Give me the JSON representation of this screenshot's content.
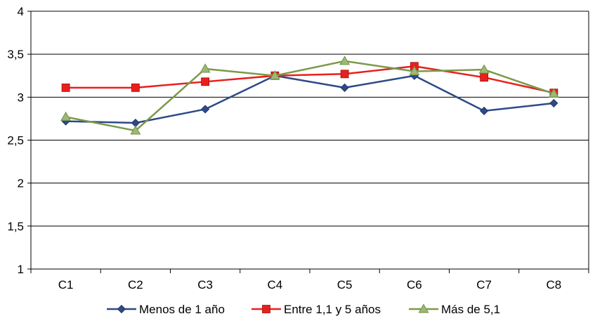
{
  "chart_data": {
    "type": "line",
    "categories": [
      "C1",
      "C2",
      "C3",
      "C4",
      "C5",
      "C6",
      "C7",
      "C8"
    ],
    "y_ticks": [
      "1",
      "1,5",
      "2",
      "2,5",
      "3",
      "3,5",
      "4"
    ],
    "ylim": [
      1,
      4
    ],
    "grid": true,
    "legend_position": "bottom",
    "series": [
      {
        "name": "Menos de 1 año",
        "values": [
          2.72,
          2.7,
          2.86,
          3.25,
          3.11,
          3.25,
          2.84,
          2.93
        ],
        "color": "#2E4A87",
        "marker": "diamond"
      },
      {
        "name": "Entre 1,1 y 5 años",
        "values": [
          3.11,
          3.11,
          3.18,
          3.25,
          3.27,
          3.36,
          3.23,
          3.05
        ],
        "color": "#E8201C",
        "marker": "square"
      },
      {
        "name": "Más de 5,1",
        "values": [
          2.77,
          2.61,
          3.33,
          3.25,
          3.42,
          3.3,
          3.32,
          3.04
        ],
        "color": "#7A9A4A",
        "marker": "triangle"
      }
    ]
  }
}
